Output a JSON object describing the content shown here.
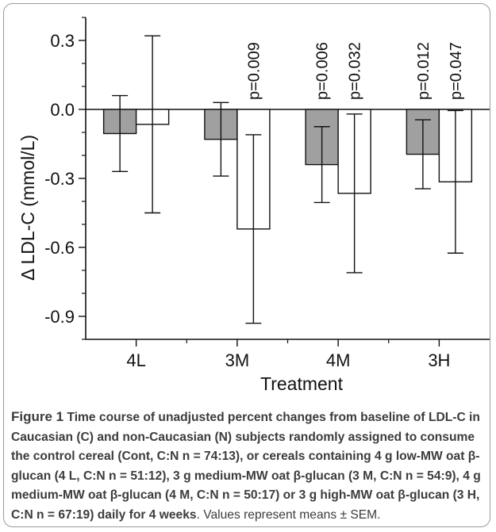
{
  "chart_data": {
    "type": "bar",
    "categories": [
      "4L",
      "3M",
      "4M",
      "3H"
    ],
    "series": [
      {
        "fill": "#a0a0a0",
        "values": [
          -0.105,
          -0.13,
          -0.24,
          -0.195
        ],
        "error": [
          0.165,
          0.16,
          0.165,
          0.15
        ]
      },
      {
        "fill": "#ffffff",
        "values": [
          -0.065,
          -0.52,
          -0.365,
          -0.315
        ],
        "error": [
          0.385,
          0.41,
          0.345,
          0.31
        ]
      }
    ],
    "p_labels": [
      [
        "",
        ""
      ],
      [
        "",
        "p=0.009"
      ],
      [
        "p=0.006",
        "p=0.032"
      ],
      [
        "p=0.012",
        "p=0.047"
      ]
    ],
    "xlabel": "Treatment",
    "ylabel": "Δ LDL-C (mmol/L)",
    "ylim": [
      -1.0,
      0.4
    ],
    "yticks": [
      0.3,
      0.0,
      -0.3,
      -0.6,
      -0.9
    ],
    "ytick_labels": [
      "0.3",
      "0.0",
      "-0.3",
      "-0.6",
      "-0.9"
    ],
    "grid": false
  },
  "caption": {
    "figure_label": "Figure 1",
    "bold_text": " Time course of unadjusted percent changes from baseline of LDL-C in Caucasian (C) and non-Caucasian (N) subjects randomly assigned to consume the control cereal (Cont, C:N n = 74:13), or cereals containing 4 g low-MW oat β-glucan (4 L, C:N n = 51:12), 3 g medium-MW oat β-glucan (3 M, C:N n = 54:9), 4 g medium-MW oat β-glucan (4 M, C:N n = 50:17) or 3 g high-MW oat β-glucan (3 H, C:N n = 67:19) daily for 4 weeks",
    "normal_text": ". Values represent means ± SEM."
  }
}
